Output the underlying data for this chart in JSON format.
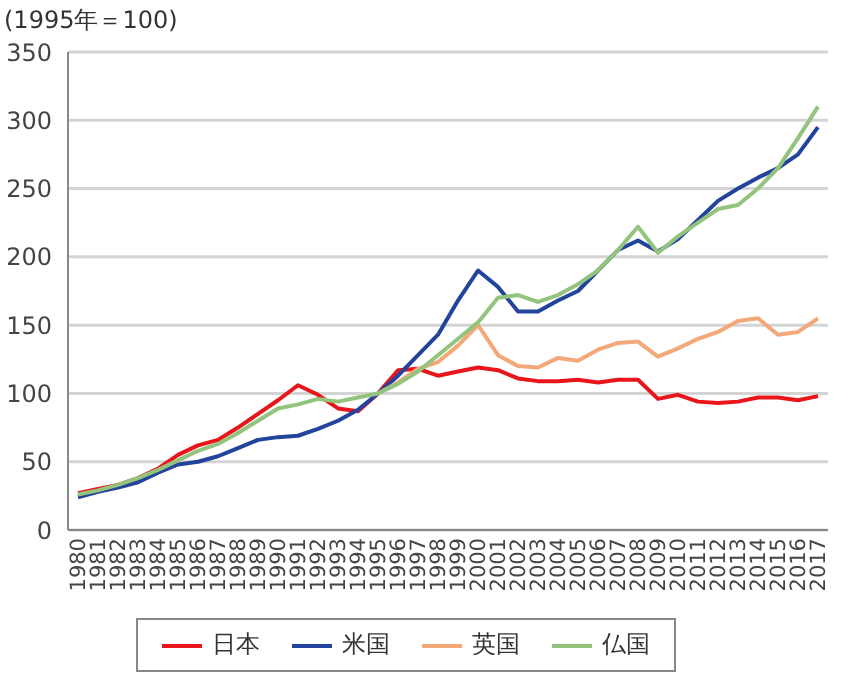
{
  "chart_data": {
    "type": "line",
    "ylabel": "(1995年＝100)",
    "categories": [
      "1980",
      "1981",
      "1982",
      "1983",
      "1984",
      "1985",
      "1986",
      "1987",
      "1988",
      "1989",
      "1990",
      "1991",
      "1992",
      "1993",
      "1994",
      "1995",
      "1996",
      "1997",
      "1998",
      "1999",
      "2000",
      "2001",
      "2002",
      "2003",
      "2004",
      "2005",
      "2006",
      "2007",
      "2008",
      "2009",
      "2010",
      "2011",
      "2012",
      "2013",
      "2014",
      "2015",
      "2016",
      "2017"
    ],
    "series": [
      {
        "name": "日本",
        "color": "#e8161b",
        "values": [
          27,
          30,
          33,
          38,
          45,
          55,
          62,
          66,
          75,
          85,
          95,
          106,
          99,
          89,
          87,
          100,
          117,
          118,
          113,
          116,
          119,
          117,
          111,
          109,
          109,
          110,
          108,
          110,
          110,
          96,
          99,
          94,
          93,
          94,
          97,
          97,
          95,
          98
        ]
      },
      {
        "name": "米国",
        "color": "#23449c",
        "values": [
          24,
          28,
          31,
          35,
          42,
          48,
          50,
          54,
          60,
          66,
          68,
          69,
          74,
          80,
          88,
          100,
          113,
          128,
          143,
          168,
          190,
          178,
          160,
          160,
          168,
          175,
          190,
          205,
          212,
          204,
          213,
          227,
          241,
          250,
          258,
          265,
          275,
          295
        ]
      },
      {
        "name": "英国",
        "color": "#f2a878",
        "values": [
          null,
          null,
          null,
          null,
          null,
          null,
          null,
          null,
          null,
          null,
          null,
          null,
          null,
          null,
          null,
          100,
          108,
          118,
          123,
          135,
          150,
          128,
          120,
          119,
          126,
          124,
          132,
          137,
          138,
          127,
          133,
          140,
          145,
          153,
          155,
          143,
          145,
          155
        ]
      },
      {
        "name": "仏国",
        "color": "#93c47d",
        "values": [
          26,
          29,
          33,
          38,
          44,
          51,
          58,
          63,
          71,
          80,
          89,
          92,
          96,
          94,
          97,
          100,
          107,
          116,
          128,
          140,
          152,
          170,
          172,
          167,
          172,
          180,
          190,
          205,
          222,
          203,
          215,
          225,
          235,
          238,
          250,
          265,
          287,
          310
        ]
      }
    ],
    "ylim": [
      0,
      350
    ],
    "yticks": [
      0,
      50,
      100,
      150,
      200,
      250,
      300,
      350
    ],
    "grid": "y",
    "legend": "bottom",
    "marker": "none",
    "line_style": "solid"
  }
}
